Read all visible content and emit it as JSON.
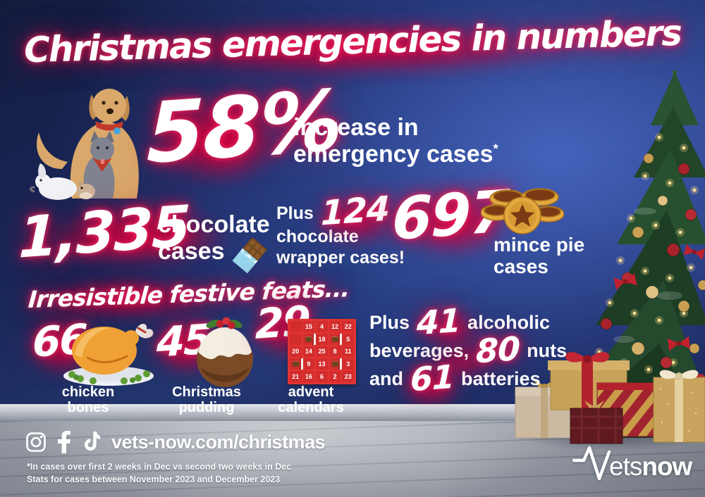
{
  "title": "Christmas emergencies in numbers",
  "hero": {
    "value": "58%",
    "line1": "increase in",
    "line2": "emergency cases",
    "footnote_marker": "*"
  },
  "chocolate": {
    "value": "1,335",
    "line1": "chocolate",
    "line2": "cases"
  },
  "wrapper": {
    "prefix": "Plus",
    "value": "124",
    "line1": "chocolate",
    "line2": "wrapper cases!"
  },
  "mince": {
    "value": "697",
    "line1": "mince pie",
    "line2": "cases"
  },
  "festive_heading": "Irresistible festive feats...",
  "feats": [
    {
      "value": "66",
      "label": "chicken bones",
      "icon": "roast-chicken"
    },
    {
      "value": "45",
      "label": "Christmas pudding",
      "icon": "christmas-pudding"
    },
    {
      "value": "29",
      "label": "advent calendars",
      "icon": "advent-calendar"
    }
  ],
  "advent_grid": [
    [
      "",
      "15",
      "4",
      "12",
      "22"
    ],
    [
      "",
      "treat",
      "18",
      "treat",
      "5"
    ],
    [
      "20",
      "14",
      "25",
      "8",
      "11"
    ],
    [
      "treat",
      "9",
      "13",
      "treat",
      "3"
    ],
    [
      "21",
      "16",
      "6",
      "2",
      "23"
    ]
  ],
  "extras": {
    "line1": {
      "pre": "Plus",
      "num": "41",
      "post": "alcoholic"
    },
    "line2": {
      "pre": "beverages,",
      "num": "80",
      "post": "nuts"
    },
    "line3": {
      "pre": "and",
      "num": "61",
      "post": "batteries"
    }
  },
  "footer": {
    "url": "vets-now.com/christmas",
    "social": [
      "instagram",
      "facebook",
      "tiktok"
    ],
    "footnote1": "*In cases over first 2 weeks in Dec vs second two weeks in Dec",
    "footnote2": "Stats for cases between November 2023 and December 2023",
    "logo_ets": "ets",
    "logo_now": "now"
  },
  "colors": {
    "glow_red": "#e0033f",
    "wall_blue_bright": "#3a56a8",
    "wall_blue_dark": "#141b3e",
    "advent_red": "#e23434",
    "floor_grey": "#a9adb5",
    "text_white": "#ffffff"
  }
}
